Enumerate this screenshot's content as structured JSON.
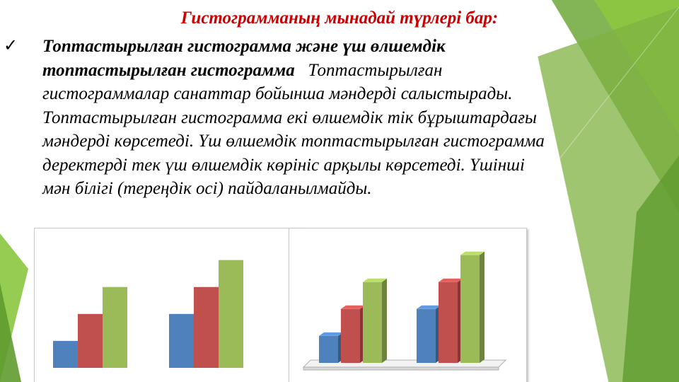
{
  "slide": {
    "title": "Гистограмманың мынадай түрлері бар:",
    "bullet_icon": "checkmark-icon",
    "heading_line1": "Топтастырылған гистограмма және үш өлшемдік",
    "heading_line2": "топтастырылған гистограмма",
    "body_line2_rest": "Топтастырылған",
    "body_lines": [
      "гистограммалар санаттар бойынша мәндерді салыстырады.",
      "Топтастырылған гистограмма екі өлшемдік тік бұрыштардағы",
      "мәндерді көрсетеді. Үш өлшемдік топтастырылған гистограмма",
      "деректерді тек үш өлшемдік көрініс арқылы көрсетеді. Үшінші",
      "мән білігі (тереңдік осі) пайдаланылмайды."
    ]
  },
  "colors": {
    "title": "#cc0000",
    "series1": "#4f81bd",
    "series2": "#c0504d",
    "series3": "#9bbb59",
    "accent_green_dark": "#5f9b2f",
    "accent_green_light": "#8cc63f"
  },
  "chart_data": [
    {
      "type": "bar",
      "variant": "clustered-2d",
      "categories": [
        "",
        ""
      ],
      "series": [
        {
          "values": [
            1,
            2
          ]
        },
        {
          "values": [
            2,
            3
          ]
        },
        {
          "values": [
            3,
            4
          ]
        }
      ],
      "ylim": [
        0,
        4.2
      ],
      "grid": false,
      "legend": "none"
    },
    {
      "type": "bar",
      "variant": "clustered-3d",
      "categories": [
        "",
        ""
      ],
      "series": [
        {
          "values": [
            1,
            2
          ]
        },
        {
          "values": [
            2,
            3
          ]
        },
        {
          "values": [
            3,
            4
          ]
        }
      ],
      "ylim": [
        0,
        4.2
      ],
      "grid": false,
      "legend": "none"
    }
  ]
}
